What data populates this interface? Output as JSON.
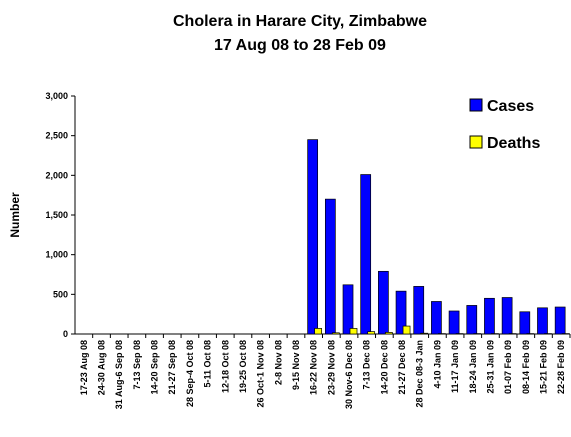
{
  "chart_data": {
    "type": "bar",
    "title": "Cholera in Harare City, Zimbabwe",
    "subtitle": "17 Aug 08 to 28 Feb 09",
    "y_label": "Number",
    "categories": [
      "17-23 Aug 08",
      "24-30 Aug 08",
      "31 Aug-6 Sep 08",
      "7-13 Sep 08",
      "14-20 Sep 08",
      "21-27 Sep 08",
      "28 Sep-4 Oct 08",
      "5-11 Oct 08",
      "12-18 Oct 08",
      "19-25 Oct 08",
      "26 Oct-1 Nov 08",
      "2-8 Nov 08",
      "9-15 Nov 08",
      "16-22 Nov 08",
      "23-29 Nov 08",
      "30 Nov-6 Dec 08",
      "7-13 Dec 08",
      "14-20 Dec 08",
      "21-27 Dec 08",
      "28 Dec 08-3 Jan",
      "4-10 Jan 09",
      "11-17 Jan 09",
      "18-24 Jan 09",
      "25-31 Jan 09",
      "01-07 Feb 09",
      "08-14 Feb 09",
      "15-21 Feb 09",
      "22-28 Feb 09"
    ],
    "series": [
      {
        "name": "Cases",
        "color": "#0000ff",
        "values": [
          0,
          0,
          0,
          0,
          0,
          0,
          0,
          0,
          0,
          0,
          0,
          0,
          0,
          2450,
          1700,
          620,
          2010,
          790,
          540,
          600,
          410,
          290,
          360,
          450,
          460,
          280,
          330,
          340
        ]
      },
      {
        "name": "Deaths",
        "color": "#ffff00",
        "values": [
          0,
          0,
          0,
          0,
          0,
          0,
          0,
          0,
          0,
          0,
          0,
          0,
          0,
          70,
          15,
          70,
          30,
          20,
          100,
          10,
          5,
          5,
          5,
          5,
          5,
          5,
          5,
          5
        ]
      }
    ],
    "ylim": [
      0,
      3000
    ],
    "yticks": [
      0,
      {
        "value": 500,
        "label": "500"
      },
      {
        "value": 1000,
        "label": "1,000"
      },
      {
        "value": 1500,
        "label": "1,500"
      },
      {
        "value": 2000,
        "label": "2,000"
      },
      {
        "value": 2500,
        "label": "2,500"
      },
      {
        "value": 3000,
        "label": "3,000"
      }
    ],
    "legend": "upper right"
  }
}
